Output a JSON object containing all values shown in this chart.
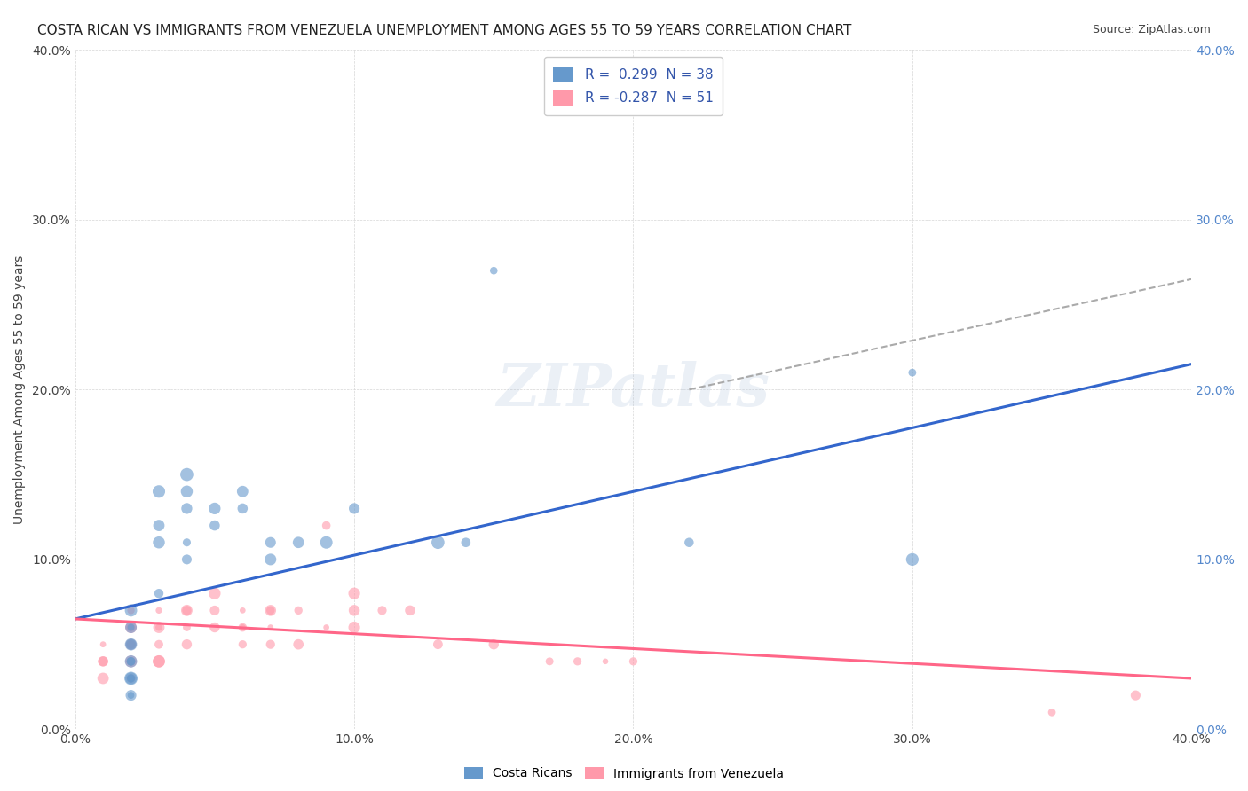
{
  "title": "COSTA RICAN VS IMMIGRANTS FROM VENEZUELA UNEMPLOYMENT AMONG AGES 55 TO 59 YEARS CORRELATION CHART",
  "source": "Source: ZipAtlas.com",
  "ylabel": "Unemployment Among Ages 55 to 59 years",
  "xlabel": "",
  "xlim": [
    0.0,
    0.4
  ],
  "ylim": [
    0.0,
    0.4
  ],
  "yticks": [
    0.0,
    0.1,
    0.2,
    0.3,
    0.4
  ],
  "xticks": [
    0.0,
    0.1,
    0.2,
    0.3,
    0.4
  ],
  "yticklabels": [
    "0.0%",
    "10.0%",
    "20.0%",
    "30.0%",
    "40.0%"
  ],
  "xticklabels": [
    "0.0%",
    "10.0%",
    "20.0%",
    "30.0%",
    "40.0%"
  ],
  "watermark": "ZIPatlas",
  "legend_r1": "R =  0.299",
  "legend_n1": "N = 38",
  "legend_r2": "R = -0.287",
  "legend_n2": "N = 51",
  "blue_color": "#6699CC",
  "pink_color": "#FF99AA",
  "blue_line_color": "#3366CC",
  "pink_line_color": "#FF6688",
  "dashed_line_color": "#AAAAAA",
  "background_color": "#FFFFFF",
  "blue_scatter": {
    "x": [
      0.02,
      0.02,
      0.02,
      0.02,
      0.02,
      0.02,
      0.02,
      0.02,
      0.02,
      0.02,
      0.02,
      0.02,
      0.02,
      0.02,
      0.03,
      0.03,
      0.03,
      0.03,
      0.04,
      0.04,
      0.04,
      0.04,
      0.04,
      0.05,
      0.05,
      0.06,
      0.06,
      0.07,
      0.07,
      0.08,
      0.09,
      0.1,
      0.13,
      0.14,
      0.15,
      0.22,
      0.3,
      0.3
    ],
    "y": [
      0.07,
      0.06,
      0.06,
      0.05,
      0.05,
      0.04,
      0.04,
      0.04,
      0.03,
      0.03,
      0.03,
      0.03,
      0.02,
      0.02,
      0.14,
      0.12,
      0.11,
      0.08,
      0.15,
      0.14,
      0.13,
      0.11,
      0.1,
      0.13,
      0.12,
      0.13,
      0.14,
      0.11,
      0.1,
      0.11,
      0.11,
      0.13,
      0.11,
      0.11,
      0.27,
      0.11,
      0.21,
      0.1
    ]
  },
  "pink_scatter": {
    "x": [
      0.01,
      0.01,
      0.01,
      0.01,
      0.02,
      0.02,
      0.02,
      0.02,
      0.02,
      0.02,
      0.02,
      0.02,
      0.02,
      0.03,
      0.03,
      0.03,
      0.03,
      0.03,
      0.03,
      0.04,
      0.04,
      0.04,
      0.04,
      0.05,
      0.05,
      0.05,
      0.06,
      0.06,
      0.06,
      0.06,
      0.07,
      0.07,
      0.07,
      0.07,
      0.08,
      0.08,
      0.09,
      0.09,
      0.1,
      0.1,
      0.1,
      0.11,
      0.12,
      0.13,
      0.15,
      0.17,
      0.18,
      0.19,
      0.2,
      0.35,
      0.38
    ],
    "y": [
      0.05,
      0.04,
      0.04,
      0.03,
      0.07,
      0.06,
      0.06,
      0.05,
      0.05,
      0.04,
      0.04,
      0.03,
      0.03,
      0.07,
      0.06,
      0.06,
      0.05,
      0.04,
      0.04,
      0.07,
      0.07,
      0.06,
      0.05,
      0.08,
      0.07,
      0.06,
      0.07,
      0.06,
      0.06,
      0.05,
      0.07,
      0.07,
      0.06,
      0.05,
      0.07,
      0.05,
      0.12,
      0.06,
      0.08,
      0.07,
      0.06,
      0.07,
      0.07,
      0.05,
      0.05,
      0.04,
      0.04,
      0.04,
      0.04,
      0.01,
      0.02
    ]
  },
  "blue_line": {
    "x0": 0.0,
    "x1": 0.4,
    "y0": 0.065,
    "y1": 0.215
  },
  "pink_line": {
    "x0": 0.0,
    "x1": 0.4,
    "y0": 0.065,
    "y1": 0.03
  },
  "dashed_line": {
    "x0": 0.22,
    "x1": 0.4,
    "y0": 0.2,
    "y1": 0.265
  },
  "blue_scatter_size_range": [
    30,
    120
  ],
  "pink_scatter_size_range": [
    20,
    100
  ],
  "title_fontsize": 11,
  "axis_tick_fontsize": 10,
  "ylabel_fontsize": 10,
  "legend_fontsize": 11
}
